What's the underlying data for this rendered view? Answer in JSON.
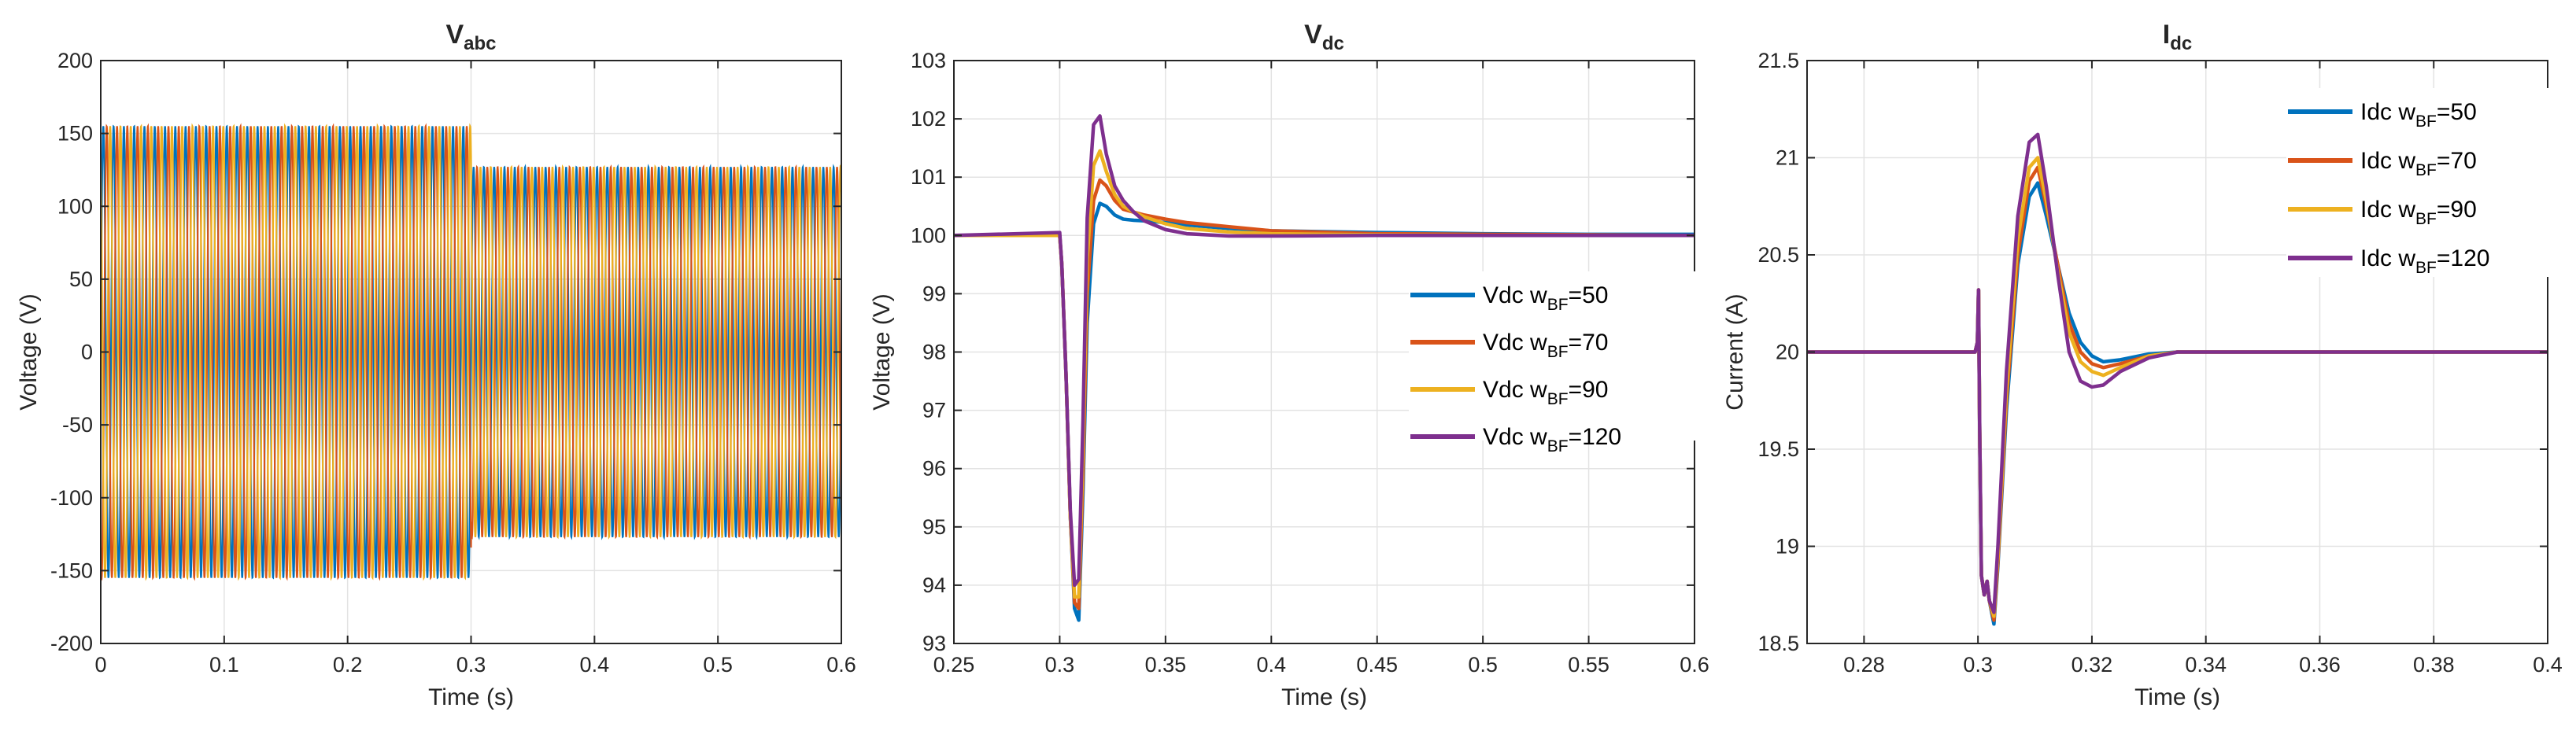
{
  "colors": {
    "series": [
      "#0072BD",
      "#D95319",
      "#EDB120",
      "#7E2F8E"
    ],
    "axes": "#262626",
    "grid": "#e3e3e3"
  },
  "chart_data": [
    {
      "type": "line",
      "title": "V",
      "title_subscript": "abc",
      "xlabel": "Time (s)",
      "ylabel": "Voltage (V)",
      "xlim": [
        0,
        0.6
      ],
      "ylim": [
        -200,
        200
      ],
      "xticks": [
        0,
        0.1,
        0.2,
        0.3,
        0.4,
        0.5,
        0.6
      ],
      "xtick_labels": [
        "0",
        "0.1",
        "0.2",
        "0.3",
        "0.4",
        "0.5",
        "0.6"
      ],
      "yticks": [
        -200,
        -150,
        -100,
        -50,
        0,
        50,
        100,
        150,
        200
      ],
      "ytick_labels": [
        "-200",
        "-150",
        "-100",
        "-50",
        "0",
        "50",
        "100",
        "150",
        "200"
      ],
      "grid": true,
      "legend": null,
      "signal": "three-phase sinusoid",
      "frequency_hz": 120,
      "phase_deg": [
        0,
        -120,
        120
      ],
      "segments": [
        {
          "t_start": 0,
          "t_end": 0.3,
          "amplitude": 155
        },
        {
          "t_start": 0.3,
          "t_end": 0.6,
          "amplitude": 127
        }
      ],
      "series": [
        {
          "phase_index": 0,
          "color_index": 0
        },
        {
          "phase_index": 1,
          "color_index": 1
        },
        {
          "phase_index": 2,
          "color_index": 2
        }
      ]
    },
    {
      "type": "line",
      "title": "V",
      "title_subscript": "dc",
      "xlabel": "Time (s)",
      "ylabel": "Voltage (V)",
      "xlim": [
        0.25,
        0.6
      ],
      "ylim": [
        93,
        103
      ],
      "xticks": [
        0.25,
        0.3,
        0.35,
        0.4,
        0.45,
        0.5,
        0.55,
        0.6
      ],
      "xtick_labels": [
        "0.25",
        "0.3",
        "0.35",
        "0.4",
        "0.45",
        "0.5",
        "0.55",
        "0.6"
      ],
      "yticks": [
        93,
        94,
        95,
        96,
        97,
        98,
        99,
        100,
        101,
        102,
        103
      ],
      "ytick_labels": [
        "93",
        "94",
        "95",
        "96",
        "97",
        "98",
        "99",
        "100",
        "101",
        "102",
        "103"
      ],
      "grid": true,
      "legend": "right",
      "series": [
        {
          "name": "Vdc w",
          "name_subscript": "BF",
          "name_suffix": "=50",
          "x": [
            0.25,
            0.3,
            0.301,
            0.303,
            0.305,
            0.307,
            0.309,
            0.311,
            0.313,
            0.316,
            0.319,
            0.322,
            0.326,
            0.33,
            0.335,
            0.34,
            0.35,
            0.36,
            0.38,
            0.4,
            0.45,
            0.5,
            0.55,
            0.6
          ],
          "y": [
            100,
            100,
            99.5,
            97.6,
            95.2,
            93.6,
            93.4,
            95.6,
            98.5,
            100.2,
            100.55,
            100.5,
            100.35,
            100.28,
            100.26,
            100.25,
            100.22,
            100.18,
            100.12,
            100.08,
            100.05,
            100.03,
            100.02,
            100.02
          ]
        },
        {
          "name": "Vdc w",
          "name_subscript": "BF",
          "name_suffix": "=70",
          "x": [
            0.25,
            0.3,
            0.301,
            0.303,
            0.305,
            0.307,
            0.309,
            0.311,
            0.313,
            0.316,
            0.319,
            0.322,
            0.326,
            0.33,
            0.335,
            0.34,
            0.35,
            0.36,
            0.38,
            0.4,
            0.45,
            0.5,
            0.55,
            0.6
          ],
          "y": [
            100,
            100,
            99.5,
            97.6,
            95.2,
            93.7,
            93.6,
            95.9,
            99,
            100.6,
            100.95,
            100.85,
            100.6,
            100.45,
            100.4,
            100.35,
            100.28,
            100.22,
            100.15,
            100.08,
            100.03,
            100.02,
            100.01,
            100
          ]
        },
        {
          "name": "Vdc w",
          "name_subscript": "BF",
          "name_suffix": "=90",
          "x": [
            0.25,
            0.3,
            0.301,
            0.303,
            0.305,
            0.307,
            0.309,
            0.311,
            0.313,
            0.316,
            0.319,
            0.322,
            0.326,
            0.33,
            0.335,
            0.34,
            0.35,
            0.36,
            0.38,
            0.4,
            0.45,
            0.5,
            0.55,
            0.6
          ],
          "y": [
            100,
            100,
            99.5,
            97.6,
            95.2,
            93.8,
            93.8,
            96.3,
            99.6,
            101.2,
            101.45,
            101.1,
            100.7,
            100.5,
            100.4,
            100.32,
            100.2,
            100.12,
            100.06,
            100.03,
            100.01,
            100,
            100,
            100
          ]
        },
        {
          "name": "Vdc w",
          "name_subscript": "BF",
          "name_suffix": "=120",
          "x": [
            0.25,
            0.3,
            0.301,
            0.303,
            0.305,
            0.307,
            0.309,
            0.311,
            0.313,
            0.316,
            0.319,
            0.322,
            0.326,
            0.33,
            0.335,
            0.34,
            0.35,
            0.36,
            0.38,
            0.4,
            0.45,
            0.5,
            0.55,
            0.6
          ],
          "y": [
            100,
            100.05,
            99.5,
            97.6,
            95.3,
            94.0,
            94.1,
            96.8,
            100.3,
            101.9,
            102.05,
            101.4,
            100.85,
            100.6,
            100.4,
            100.25,
            100.1,
            100.03,
            99.99,
            99.99,
            100,
            100,
            100,
            100
          ]
        }
      ]
    },
    {
      "type": "line",
      "title": "I",
      "title_subscript": "dc",
      "xlabel": "Time (s)",
      "ylabel": "Current (A)",
      "xlim": [
        0.27,
        0.4
      ],
      "ylim": [
        18.5,
        21.5
      ],
      "xticks": [
        0.28,
        0.3,
        0.32,
        0.34,
        0.36,
        0.38,
        0.4
      ],
      "xtick_labels": [
        "0.28",
        "0.3",
        "0.32",
        "0.34",
        "0.36",
        "0.38",
        "0.4"
      ],
      "yticks": [
        18.5,
        19,
        19.5,
        20,
        20.5,
        21,
        21.5
      ],
      "ytick_labels": [
        "18.5",
        "19",
        "19.5",
        "20",
        "20.5",
        "21",
        "21.5"
      ],
      "grid": true,
      "legend": "top-right",
      "series": [
        {
          "name": "Idc w",
          "name_subscript": "BF",
          "name_suffix": "=50",
          "x": [
            0.27,
            0.2995,
            0.2999,
            0.3001,
            0.3003,
            0.3006,
            0.3011,
            0.3016,
            0.302,
            0.3028,
            0.3035,
            0.305,
            0.307,
            0.309,
            0.3105,
            0.312,
            0.314,
            0.316,
            0.318,
            0.32,
            0.322,
            0.325,
            0.33,
            0.335,
            0.34,
            0.35,
            0.37,
            0.4
          ],
          "y": [
            20,
            20,
            20.05,
            20.32,
            19.6,
            18.85,
            18.75,
            18.82,
            18.72,
            18.6,
            18.9,
            19.7,
            20.45,
            20.8,
            20.87,
            20.7,
            20.45,
            20.2,
            20.05,
            19.98,
            19.95,
            19.96,
            19.99,
            20,
            20,
            20,
            20,
            20
          ]
        },
        {
          "name": "Idc w",
          "name_subscript": "BF",
          "name_suffix": "=70",
          "x": [
            0.27,
            0.2995,
            0.2999,
            0.3001,
            0.3003,
            0.3006,
            0.3011,
            0.3016,
            0.302,
            0.3028,
            0.3035,
            0.305,
            0.307,
            0.309,
            0.3105,
            0.312,
            0.314,
            0.316,
            0.318,
            0.32,
            0.322,
            0.325,
            0.33,
            0.335,
            0.34,
            0.35,
            0.37,
            0.4
          ],
          "y": [
            20,
            20,
            20.05,
            20.32,
            19.6,
            18.85,
            18.75,
            18.82,
            18.72,
            18.62,
            18.92,
            19.75,
            20.5,
            20.88,
            20.95,
            20.75,
            20.45,
            20.15,
            20.0,
            19.94,
            19.92,
            19.94,
            19.98,
            20,
            20,
            20,
            20,
            20
          ]
        },
        {
          "name": "Idc w",
          "name_subscript": "BF",
          "name_suffix": "=90",
          "x": [
            0.27,
            0.2995,
            0.2999,
            0.3001,
            0.3003,
            0.3006,
            0.3011,
            0.3016,
            0.302,
            0.3028,
            0.3035,
            0.305,
            0.307,
            0.309,
            0.3105,
            0.312,
            0.314,
            0.316,
            0.318,
            0.32,
            0.322,
            0.325,
            0.33,
            0.335,
            0.34,
            0.35,
            0.37,
            0.4
          ],
          "y": [
            20,
            20,
            20.05,
            20.32,
            19.6,
            18.85,
            18.75,
            18.82,
            18.72,
            18.64,
            18.95,
            19.8,
            20.58,
            20.95,
            21.0,
            20.78,
            20.42,
            20.1,
            19.95,
            19.9,
            19.88,
            19.92,
            19.98,
            20,
            20,
            20,
            20,
            20
          ]
        },
        {
          "name": "Idc w",
          "name_subscript": "BF",
          "name_suffix": "=120",
          "x": [
            0.27,
            0.2995,
            0.2999,
            0.3001,
            0.3003,
            0.3006,
            0.3011,
            0.3016,
            0.302,
            0.3028,
            0.3035,
            0.305,
            0.307,
            0.309,
            0.3105,
            0.312,
            0.314,
            0.316,
            0.318,
            0.32,
            0.322,
            0.325,
            0.33,
            0.335,
            0.34,
            0.35,
            0.37,
            0.4
          ],
          "y": [
            20,
            20,
            20.05,
            20.32,
            19.6,
            18.85,
            18.75,
            18.82,
            18.72,
            18.66,
            19.0,
            19.9,
            20.7,
            21.08,
            21.12,
            20.85,
            20.4,
            20.0,
            19.85,
            19.82,
            19.83,
            19.9,
            19.97,
            20,
            20,
            20,
            20,
            20
          ]
        }
      ]
    }
  ]
}
